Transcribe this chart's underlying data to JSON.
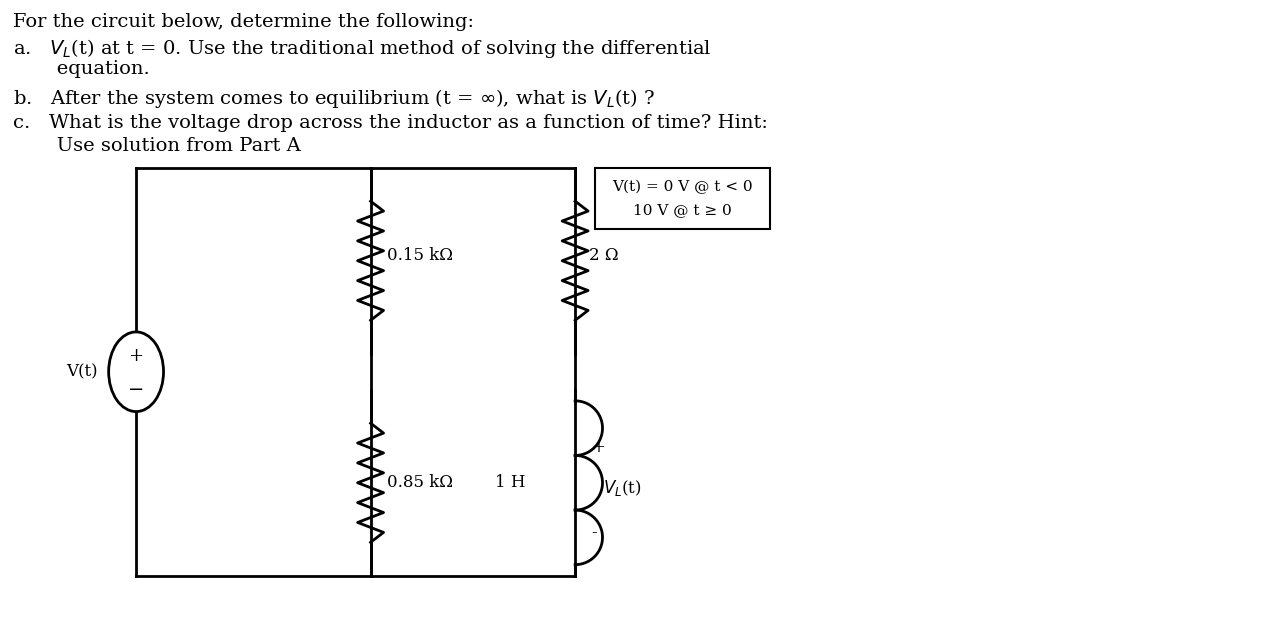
{
  "bg_color": "#ffffff",
  "text_color": "#000000",
  "title_line": "For the circuit below, determine the following:",
  "item_a_line1": "a.   V$_L$(t) at t = 0. Use the traditional method of solving the differential",
  "item_a_line2": "       equation.",
  "item_b": "b.   After the system comes to equilibrium (t = ∞), what is V$_L$(t) ?",
  "item_c_line1": "c.   What is the voltage drop across the inductor as a function of time? Hint:",
  "item_c_line2": "       Use solution from Part A",
  "box_text_line1": "V(t) = 0 V @ t < 0",
  "box_text_line2": "10 V @ t ≥ 0",
  "label_R1": "0.15 kΩ",
  "label_R1b": "2 Ω",
  "label_R2": "0.85 kΩ",
  "label_L": "1 H",
  "label_Vt": "V(t)",
  "label_plus_source": "+",
  "label_minus_source": "-",
  "label_plus_VL": "+",
  "label_minus_VL": "-",
  "fs_main": 14,
  "fs_circuit": 12,
  "lw_circuit": 2.0
}
